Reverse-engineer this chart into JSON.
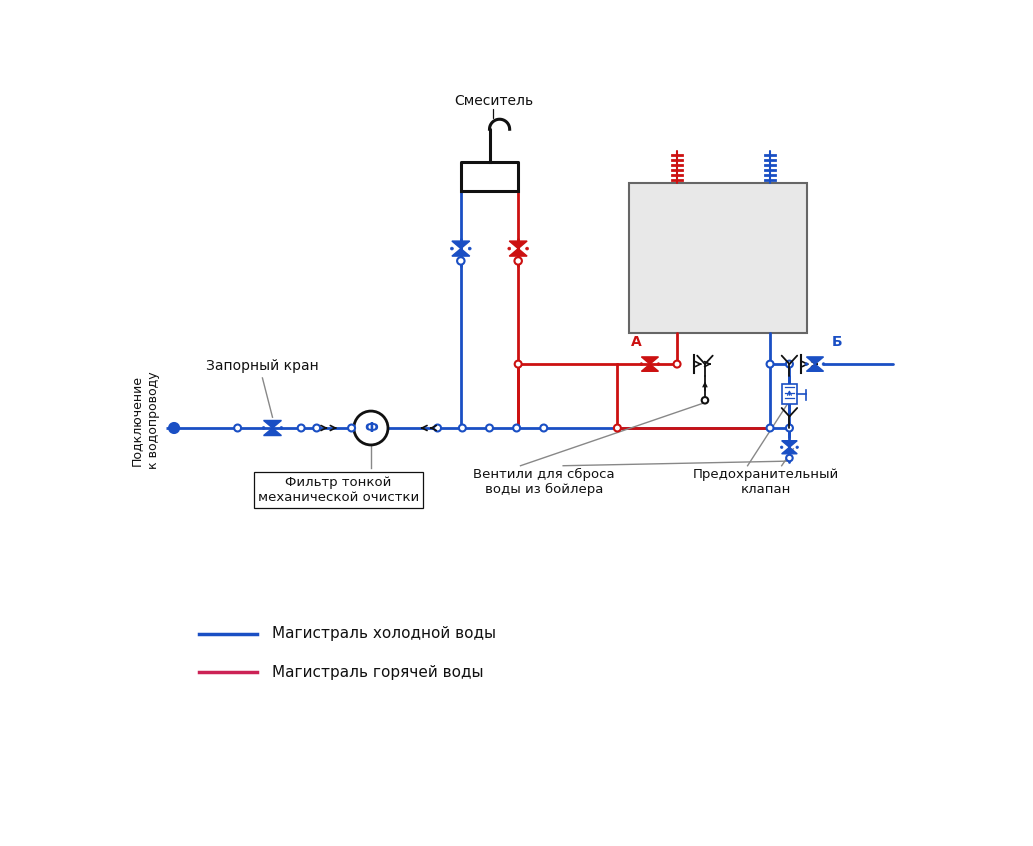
{
  "bg_color": "#ffffff",
  "blue": "#1a4fc4",
  "blue_dark": "#0000cc",
  "red": "#cc1111",
  "black": "#111111",
  "gray": "#888888",
  "box_gray": "#e8e8e8",
  "box_border": "#666666",
  "legend_cold": "Магистраль холодной воды",
  "legend_hot": "Магистраль горячей воды",
  "label_mixer": "Смеситель",
  "label_valve": "Запорный кран",
  "label_filter": "Фильтр тонкой\nмеханической очистки",
  "label_drain": "Вентили для сброса\nводы из бойлера",
  "label_safety": "Предохранительный\nклапан",
  "label_pipe": "Подключение\nк водопроводу",
  "label_A": "А",
  "label_B": "Б"
}
